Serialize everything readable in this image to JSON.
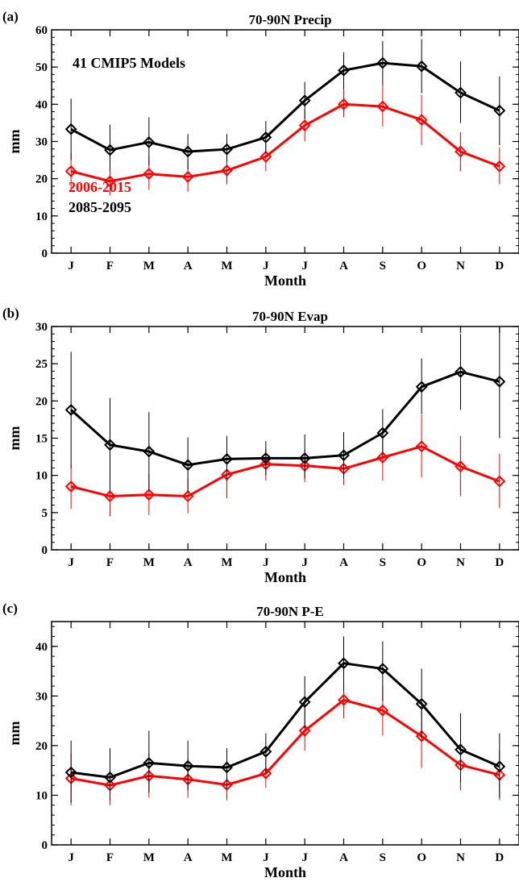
{
  "chart_data": [
    {
      "type": "line",
      "panel_label": "(a)",
      "title": "70-90N Precip",
      "xlabel": "Month",
      "ylabel": "mm",
      "categories": [
        "J",
        "F",
        "M",
        "A",
        "M",
        "J",
        "J",
        "A",
        "S",
        "O",
        "N",
        "D"
      ],
      "ylim": [
        0,
        60
      ],
      "yticks": [
        0,
        10,
        20,
        30,
        40,
        50,
        60
      ],
      "annotation": "41 CMIP5 Models",
      "legend": [
        {
          "text": "2006-2015",
          "color": "#ff0000"
        },
        {
          "text": "2085-2095",
          "color": "#000000"
        }
      ],
      "grid": false,
      "series": [
        {
          "name": "2006-2015",
          "color": "#ff0000",
          "values": [
            22.0,
            19.3,
            21.3,
            20.5,
            22.2,
            25.9,
            34.3,
            40.0,
            39.4,
            35.8,
            27.3,
            23.3
          ],
          "err_low": [
            17.0,
            15.5,
            17.0,
            16.5,
            18.5,
            22.0,
            30.0,
            36.5,
            34.0,
            29.0,
            22.0,
            18.5
          ],
          "err_high": [
            27.0,
            24.5,
            26.0,
            25.0,
            26.5,
            30.0,
            38.5,
            44.0,
            45.0,
            42.5,
            32.5,
            28.5
          ]
        },
        {
          "name": "2085-2095",
          "color": "#000000",
          "values": [
            33.3,
            27.7,
            29.8,
            27.3,
            27.9,
            31.1,
            41.0,
            49.1,
            51.1,
            50.2,
            43.1,
            38.3
          ],
          "err_low": [
            25.0,
            22.0,
            23.5,
            22.5,
            24.5,
            27.0,
            36.0,
            44.0,
            45.0,
            43.0,
            35.0,
            29.0
          ],
          "err_high": [
            41.5,
            34.5,
            36.5,
            32.0,
            32.0,
            35.5,
            46.0,
            54.0,
            57.0,
            57.5,
            51.5,
            47.5
          ]
        }
      ]
    },
    {
      "type": "line",
      "panel_label": "(b)",
      "title": "70-90N Evap",
      "xlabel": "Month",
      "ylabel": "mm",
      "categories": [
        "J",
        "F",
        "M",
        "A",
        "M",
        "J",
        "J",
        "A",
        "S",
        "O",
        "N",
        "D"
      ],
      "ylim": [
        0,
        30
      ],
      "yticks": [
        0,
        5,
        10,
        15,
        20,
        25,
        30
      ],
      "grid": false,
      "series": [
        {
          "name": "2006-2015",
          "color": "#ff0000",
          "values": [
            8.5,
            7.2,
            7.4,
            7.2,
            10.1,
            11.5,
            11.3,
            10.9,
            12.4,
            13.9,
            11.2,
            9.2
          ],
          "err_low": [
            5.5,
            4.5,
            4.7,
            4.9,
            6.9,
            9.3,
            9.1,
            8.7,
            9.3,
            9.7,
            7.2,
            5.6
          ],
          "err_high": [
            11.3,
            10.0,
            10.2,
            9.6,
            13.4,
            13.7,
            13.5,
            13.1,
            15.5,
            18.1,
            15.3,
            12.9
          ]
        },
        {
          "name": "2085-2095",
          "color": "#000000",
          "values": [
            18.8,
            14.1,
            13.2,
            11.4,
            12.2,
            12.3,
            12.3,
            12.7,
            15.7,
            21.9,
            23.9,
            22.6
          ],
          "err_low": [
            11.0,
            7.8,
            8.0,
            7.8,
            9.2,
            10.0,
            9.6,
            9.6,
            12.5,
            18.2,
            18.8,
            15.0
          ],
          "err_high": [
            26.6,
            20.4,
            18.5,
            15.1,
            15.3,
            14.6,
            15.5,
            15.8,
            18.9,
            25.7,
            29.0,
            30.0
          ]
        }
      ]
    },
    {
      "type": "line",
      "panel_label": "(c)",
      "title": "70-90N P-E",
      "xlabel": "Month",
      "ylabel": "mm",
      "categories": [
        "J",
        "F",
        "M",
        "A",
        "M",
        "J",
        "J",
        "A",
        "S",
        "O",
        "N",
        "D"
      ],
      "ylim": [
        0,
        45
      ],
      "yticks": [
        0,
        10,
        20,
        30,
        40
      ],
      "grid": false,
      "series": [
        {
          "name": "2006-2015",
          "color": "#ff0000",
          "values": [
            13.4,
            12.0,
            13.9,
            13.2,
            12.1,
            14.4,
            23.0,
            29.2,
            27.1,
            21.9,
            16.1,
            14.1
          ],
          "err_low": [
            8.0,
            8.0,
            9.5,
            9.5,
            9.0,
            11.5,
            19.0,
            25.5,
            22.0,
            15.5,
            11.0,
            9.0
          ],
          "err_high": [
            18.5,
            16.5,
            18.5,
            17.5,
            15.5,
            17.5,
            27.5,
            33.5,
            32.0,
            28.0,
            21.5,
            19.0
          ]
        },
        {
          "name": "2085-2095",
          "color": "#000000",
          "values": [
            14.6,
            13.6,
            16.5,
            15.9,
            15.6,
            18.8,
            28.8,
            36.6,
            35.5,
            28.4,
            19.2,
            15.8
          ],
          "err_low": [
            8.5,
            9.0,
            10.5,
            11.0,
            11.5,
            14.5,
            23.5,
            31.0,
            29.0,
            21.5,
            12.5,
            9.5
          ],
          "err_high": [
            21.0,
            19.5,
            23.0,
            21.0,
            19.5,
            22.5,
            34.0,
            42.0,
            41.0,
            35.5,
            26.5,
            22.5
          ]
        }
      ]
    }
  ]
}
